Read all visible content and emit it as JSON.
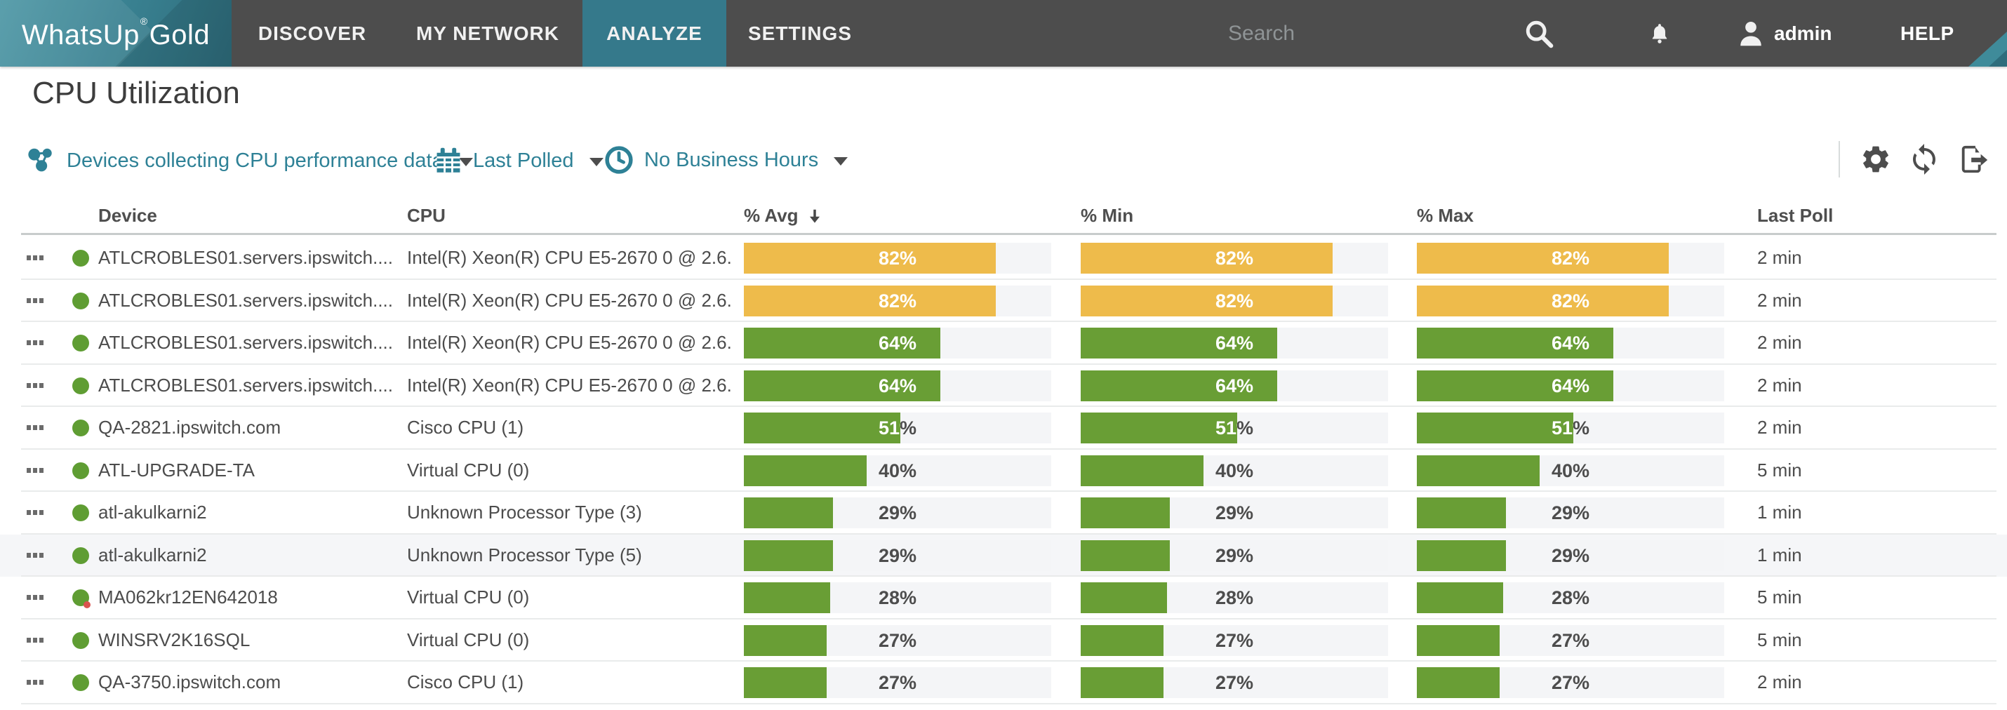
{
  "nav": {
    "logo": {
      "brand": "WhatsUp",
      "registered": "®",
      "brand2": "Gold"
    },
    "tabs": [
      {
        "label": "DISCOVER",
        "active": false
      },
      {
        "label": "MY NETWORK",
        "active": false
      },
      {
        "label": "ANALYZE",
        "active": true
      },
      {
        "label": "SETTINGS",
        "active": false
      }
    ],
    "search": {
      "placeholder": "Search"
    },
    "user": {
      "name": "admin"
    },
    "help_label": "HELP"
  },
  "page": {
    "title": "CPU Utilization"
  },
  "filters": [
    {
      "icon": "devices-icon",
      "label": "Devices collecting CPU performance data"
    },
    {
      "icon": "calendar-icon",
      "label": "Last Polled"
    },
    {
      "icon": "business-hours-clock-icon",
      "label": "No Business Hours"
    }
  ],
  "toolbar": {
    "icons": [
      "settings-gear-icon",
      "refresh-icon",
      "export-icon"
    ]
  },
  "table": {
    "columns": [
      "Device",
      "CPU",
      "% Avg",
      "% Min",
      "% Max",
      "Last Poll"
    ],
    "sort": {
      "column": "% Avg",
      "direction": "desc"
    },
    "rows": [
      {
        "device": "ATLCROBLES01.servers.ipswitch....",
        "cpu": "Intel(R) Xeon(R) CPU E5-2670 0 @ 2.6...",
        "avg": 82,
        "min": 82,
        "max": 82,
        "color": "amber",
        "last_poll": "2 min",
        "status": "up",
        "highlighted": false
      },
      {
        "device": "ATLCROBLES01.servers.ipswitch....",
        "cpu": "Intel(R) Xeon(R) CPU E5-2670 0 @ 2.6...",
        "avg": 82,
        "min": 82,
        "max": 82,
        "color": "amber",
        "last_poll": "2 min",
        "status": "up",
        "highlighted": false
      },
      {
        "device": "ATLCROBLES01.servers.ipswitch....",
        "cpu": "Intel(R) Xeon(R) CPU E5-2670 0 @ 2.6...",
        "avg": 64,
        "min": 64,
        "max": 64,
        "color": "green",
        "last_poll": "2 min",
        "status": "up",
        "highlighted": false
      },
      {
        "device": "ATLCROBLES01.servers.ipswitch....",
        "cpu": "Intel(R) Xeon(R) CPU E5-2670 0 @ 2.6...",
        "avg": 64,
        "min": 64,
        "max": 64,
        "color": "green",
        "last_poll": "2 min",
        "status": "up",
        "highlighted": false
      },
      {
        "device": "QA-2821.ipswitch.com",
        "cpu": "Cisco CPU (1)",
        "avg": 51,
        "min": 51,
        "max": 51,
        "color": "green",
        "last_poll": "2 min",
        "status": "up",
        "highlighted": false
      },
      {
        "device": "ATL-UPGRADE-TA",
        "cpu": "Virtual CPU (0)",
        "avg": 40,
        "min": 40,
        "max": 40,
        "color": "green",
        "last_poll": "5 min",
        "status": "up",
        "highlighted": false
      },
      {
        "device": "atl-akulkarni2",
        "cpu": "Unknown Processor Type (3)",
        "avg": 29,
        "min": 29,
        "max": 29,
        "color": "green",
        "last_poll": "1 min",
        "status": "up",
        "highlighted": false
      },
      {
        "device": "atl-akulkarni2",
        "cpu": "Unknown Processor Type (5)",
        "avg": 29,
        "min": 29,
        "max": 29,
        "color": "green",
        "last_poll": "1 min",
        "status": "up",
        "highlighted": true
      },
      {
        "device": "MA062kr12EN642018",
        "cpu": "Virtual CPU (0)",
        "avg": 28,
        "min": 28,
        "max": 28,
        "color": "green",
        "last_poll": "5 min",
        "status": "up-alert",
        "highlighted": false
      },
      {
        "device": "WINSRV2K16SQL",
        "cpu": "Virtual CPU (0)",
        "avg": 27,
        "min": 27,
        "max": 27,
        "color": "green",
        "last_poll": "5 min",
        "status": "up",
        "highlighted": false
      },
      {
        "device": "QA-3750.ipswitch.com",
        "cpu": "Cisco CPU (1)",
        "avg": 27,
        "min": 27,
        "max": 27,
        "color": "green",
        "last_poll": "2 min",
        "status": "up",
        "highlighted": false
      }
    ]
  },
  "colors": {
    "bar_green": "#699e35",
    "bar_amber": "#eebb4b",
    "bar_track": "#f4f5f7",
    "status_up": "#5f9d33",
    "status_alert": "#d9534f",
    "nav_active_teal": "#35798b",
    "filter_link_teal": "#2e8196"
  }
}
